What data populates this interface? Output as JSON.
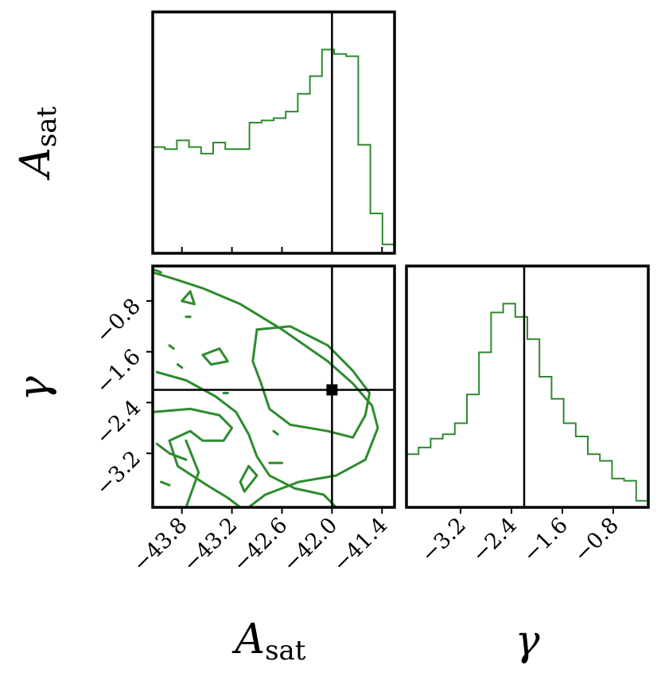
{
  "chart_data": [
    {
      "type": "histogram",
      "panel": "top-left",
      "xlabel": "",
      "ylabel": "A_sat",
      "xlim": [
        -44.15,
        -41.25
      ],
      "bin_edges": [
        -44.15,
        -44.005,
        -43.86,
        -43.715,
        -43.57,
        -43.425,
        -43.28,
        -43.135,
        -42.99,
        -42.845,
        -42.7,
        -42.555,
        -42.41,
        -42.265,
        -42.12,
        -41.975,
        -41.83,
        -41.685,
        -41.54,
        -41.395,
        -41.25
      ],
      "counts": [
        0.48,
        0.47,
        0.51,
        0.48,
        0.45,
        0.5,
        0.47,
        0.47,
        0.59,
        0.6,
        0.61,
        0.64,
        0.72,
        0.8,
        0.92,
        0.9,
        0.89,
        0.49,
        0.18,
        0.04
      ],
      "ylim": [
        0,
        1
      ],
      "truth": -42.0
    },
    {
      "type": "contour",
      "panel": "bottom-left",
      "xlabel": "A_sat",
      "ylabel": "γ",
      "xlim": [
        -44.15,
        -41.25
      ],
      "ylim": [
        -4.05,
        -0.25
      ],
      "xticks": [
        -43.8,
        -43.2,
        -42.6,
        -42.0,
        -41.4
      ],
      "xtick_labels": [
        "−43.8",
        "−43.2",
        "−42.6",
        "−42.0",
        "−41.4"
      ],
      "yticks": [
        -0.8,
        -1.6,
        -2.4,
        -3.2
      ],
      "ytick_labels": [
        "−0.8",
        "−1.6",
        "−2.4",
        "−3.2"
      ],
      "truth": [
        -42.0,
        -2.2
      ],
      "contours": [
        [
          [
            -44.15,
            -0.35
          ],
          [
            -43.9,
            -0.45
          ],
          [
            -43.55,
            -0.6
          ],
          [
            -43.1,
            -0.85
          ],
          [
            -42.6,
            -1.25
          ],
          [
            -42.05,
            -1.75
          ],
          [
            -41.75,
            -2.1
          ],
          [
            -41.52,
            -2.45
          ],
          [
            -41.45,
            -2.8
          ],
          [
            -41.6,
            -3.3
          ],
          [
            -41.95,
            -3.55
          ],
          [
            -42.4,
            -3.65
          ],
          [
            -42.8,
            -3.85
          ],
          [
            -43.0,
            -4.05
          ]
        ],
        [
          [
            -42.9,
            -1.25
          ],
          [
            -42.5,
            -1.2
          ],
          [
            -42.05,
            -1.5
          ],
          [
            -41.75,
            -1.9
          ],
          [
            -41.55,
            -2.25
          ],
          [
            -41.6,
            -2.6
          ],
          [
            -41.75,
            -2.95
          ],
          [
            -42.05,
            -2.85
          ],
          [
            -42.5,
            -2.75
          ],
          [
            -42.75,
            -2.5
          ],
          [
            -42.85,
            -2.1
          ],
          [
            -42.95,
            -1.75
          ],
          [
            -42.9,
            -1.25
          ]
        ],
        [
          [
            -44.1,
            -1.92
          ],
          [
            -43.75,
            -2.05
          ],
          [
            -43.4,
            -2.3
          ],
          [
            -43.15,
            -2.55
          ],
          [
            -43.0,
            -2.9
          ],
          [
            -42.9,
            -3.25
          ],
          [
            -42.75,
            -3.55
          ],
          [
            -42.45,
            -3.75
          ],
          [
            -42.1,
            -3.85
          ],
          [
            -41.95,
            -4.05
          ]
        ],
        [
          [
            -44.15,
            -2.55
          ],
          [
            -43.7,
            -2.5
          ],
          [
            -43.35,
            -2.6
          ],
          [
            -43.2,
            -2.8
          ],
          [
            -43.3,
            -3.0
          ],
          [
            -43.55,
            -3.0
          ],
          [
            -43.7,
            -2.85
          ],
          [
            -43.95,
            -3.0
          ],
          [
            -43.85,
            -3.4
          ],
          [
            -43.5,
            -3.7
          ],
          [
            -43.25,
            -3.9
          ],
          [
            -43.1,
            -4.05
          ]
        ],
        [
          [
            -43.75,
            -4.05
          ],
          [
            -43.6,
            -3.5
          ],
          [
            -43.75,
            -3.0
          ]
        ],
        [
          [
            -44.1,
            -3.05
          ],
          [
            -43.95,
            -3.2
          ],
          [
            -43.75,
            -3.3
          ]
        ],
        [
          [
            -43.1,
            -3.65
          ],
          [
            -43.0,
            -3.4
          ],
          [
            -42.9,
            -3.55
          ],
          [
            -43.05,
            -3.8
          ],
          [
            -43.1,
            -3.65
          ]
        ],
        [
          [
            -43.55,
            -1.65
          ],
          [
            -43.35,
            -1.55
          ],
          [
            -43.25,
            -1.75
          ],
          [
            -43.45,
            -1.8
          ],
          [
            -43.55,
            -1.65
          ]
        ],
        [
          [
            -43.8,
            -0.8
          ],
          [
            -43.7,
            -0.65
          ],
          [
            -43.65,
            -0.85
          ],
          [
            -43.8,
            -0.8
          ]
        ],
        [
          [
            -43.75,
            -1.05
          ],
          [
            -43.7,
            -1.05
          ]
        ],
        [
          [
            -43.95,
            -1.5
          ],
          [
            -43.9,
            -1.55
          ]
        ],
        [
          [
            -43.85,
            -1.8
          ],
          [
            -43.8,
            -1.85
          ]
        ],
        [
          [
            -43.3,
            -2.25
          ],
          [
            -43.25,
            -2.25
          ]
        ],
        [
          [
            -42.7,
            -2.85
          ],
          [
            -42.65,
            -2.9
          ]
        ],
        [
          [
            -42.75,
            -3.35
          ],
          [
            -42.6,
            -3.35
          ]
        ],
        [
          [
            -44.05,
            -3.65
          ],
          [
            -43.95,
            -3.7
          ]
        ],
        [
          [
            -44.15,
            -0.3
          ],
          [
            -44.05,
            -0.35
          ]
        ]
      ]
    },
    {
      "type": "histogram",
      "panel": "bottom-right",
      "xlabel": "γ",
      "ylabel": "",
      "xlim": [
        -4.05,
        -0.25
      ],
      "bin_edges": [
        -4.05,
        -3.86,
        -3.67,
        -3.48,
        -3.29,
        -3.1,
        -2.91,
        -2.72,
        -2.53,
        -2.34,
        -2.15,
        -1.96,
        -1.77,
        -1.58,
        -1.39,
        -1.2,
        -1.01,
        -0.82,
        -0.63,
        -0.44,
        -0.25
      ],
      "counts": [
        0.24,
        0.27,
        0.31,
        0.33,
        0.38,
        0.51,
        0.7,
        0.88,
        0.92,
        0.86,
        0.76,
        0.59,
        0.49,
        0.38,
        0.32,
        0.24,
        0.21,
        0.13,
        0.12,
        0.03
      ],
      "ylim": [
        0,
        1
      ],
      "xticks": [
        -3.2,
        -2.4,
        -1.6,
        -0.8
      ],
      "xtick_labels": [
        "−3.2",
        "−2.4",
        "−1.6",
        "−0.8"
      ],
      "truth": -2.2
    }
  ],
  "labels": {
    "left_row1_main": "A",
    "left_row1_sub": "sat",
    "left_row2": "γ",
    "bottom_col1_main": "A",
    "bottom_col1_sub": "sat",
    "bottom_col2": "γ"
  },
  "colors": {
    "series": "#2e8b2e",
    "truth": "#000000"
  }
}
